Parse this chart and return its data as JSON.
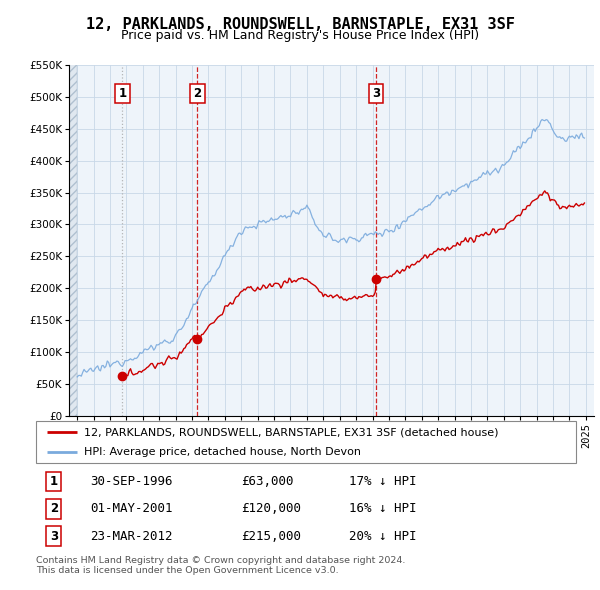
{
  "title": "12, PARKLANDS, ROUNDSWELL, BARNSTAPLE, EX31 3SF",
  "subtitle": "Price paid vs. HM Land Registry's House Price Index (HPI)",
  "legend_property": "12, PARKLANDS, ROUNDSWELL, BARNSTAPLE, EX31 3SF (detached house)",
  "legend_hpi": "HPI: Average price, detached house, North Devon",
  "footer1": "Contains HM Land Registry data © Crown copyright and database right 2024.",
  "footer2": "This data is licensed under the Open Government Licence v3.0.",
  "transactions": [
    {
      "num": 1,
      "date": "30-SEP-1996",
      "price": 63000,
      "pct": "17% ↓ HPI",
      "year": 1996.75
    },
    {
      "num": 2,
      "date": "01-MAY-2001",
      "price": 120000,
      "pct": "16% ↓ HPI",
      "year": 2001.33
    },
    {
      "num": 3,
      "date": "23-MAR-2012",
      "price": 215000,
      "pct": "20% ↓ HPI",
      "year": 2012.22
    }
  ],
  "property_color": "#cc0000",
  "hpi_color": "#7aaadd",
  "vline1_color": "#aaaaaa",
  "vline2_color": "#cc0000",
  "vline3_color": "#cc0000",
  "background_color": "#ffffff",
  "plot_bg_color": "#eef4fa",
  "grid_color": "#c8d8e8",
  "ylim": [
    0,
    550000
  ],
  "yticks": [
    0,
    50000,
    100000,
    150000,
    200000,
    250000,
    300000,
    350000,
    400000,
    450000,
    500000,
    550000
  ],
  "xlim_start": 1993.5,
  "xlim_end": 2025.5,
  "title_fontsize": 11,
  "subtitle_fontsize": 9,
  "tick_fontsize": 7.5
}
